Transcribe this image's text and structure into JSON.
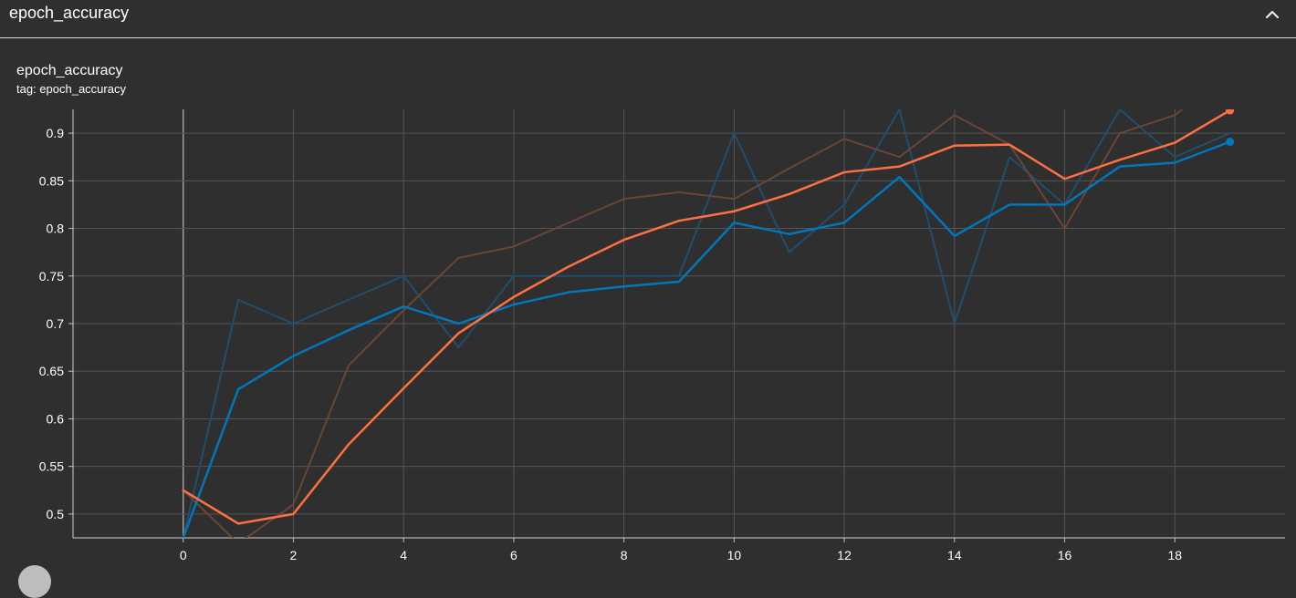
{
  "section": {
    "title": "epoch_accuracy",
    "collapse_icon": "chevron-up-icon"
  },
  "card": {
    "title": "epoch_accuracy",
    "tag": "tag: epoch_accuracy"
  },
  "chart_data": {
    "type": "line",
    "title": "epoch_accuracy",
    "xlabel": "",
    "ylabel": "",
    "xlim": [
      -2,
      20
    ],
    "ylim": [
      0.475,
      0.925
    ],
    "grid": true,
    "x_ticks": [
      0,
      2,
      4,
      6,
      8,
      10,
      12,
      14,
      16,
      18
    ],
    "y_ticks": [
      0.5,
      0.55,
      0.6,
      0.65,
      0.7,
      0.75,
      0.8,
      0.85,
      0.9
    ],
    "x": [
      0,
      1,
      2,
      3,
      4,
      5,
      6,
      7,
      8,
      9,
      10,
      11,
      12,
      13,
      14,
      15,
      16,
      17,
      18,
      19
    ],
    "series": [
      {
        "role": "raw",
        "color": "#1f4e6e",
        "values": [
          0.475,
          0.725,
          0.7,
          0.725,
          0.75,
          0.675,
          0.75,
          0.75,
          0.75,
          0.75,
          0.9,
          0.775,
          0.825,
          0.925,
          0.7,
          0.875,
          0.825,
          0.925,
          0.875,
          0.9
        ]
      },
      {
        "role": "raw",
        "color": "#6a4538",
        "values": [
          0.525,
          0.469,
          0.51,
          0.656,
          0.714,
          0.769,
          0.781,
          0.806,
          0.831,
          0.838,
          0.831,
          0.863,
          0.894,
          0.875,
          0.919,
          0.888,
          0.8,
          0.9,
          0.919,
          0.963
        ]
      },
      {
        "role": "smoothed",
        "color": "#0077bb",
        "values": [
          0.475,
          0.631,
          0.666,
          0.693,
          0.718,
          0.7,
          0.72,
          0.733,
          0.739,
          0.744,
          0.806,
          0.794,
          0.806,
          0.854,
          0.792,
          0.825,
          0.825,
          0.865,
          0.869,
          0.891
        ]
      },
      {
        "role": "smoothed",
        "color": "#ff7043",
        "values": [
          0.525,
          0.49,
          0.5,
          0.573,
          0.632,
          0.69,
          0.728,
          0.76,
          0.788,
          0.808,
          0.818,
          0.836,
          0.859,
          0.865,
          0.887,
          0.888,
          0.852,
          0.872,
          0.89,
          0.924
        ]
      }
    ]
  }
}
